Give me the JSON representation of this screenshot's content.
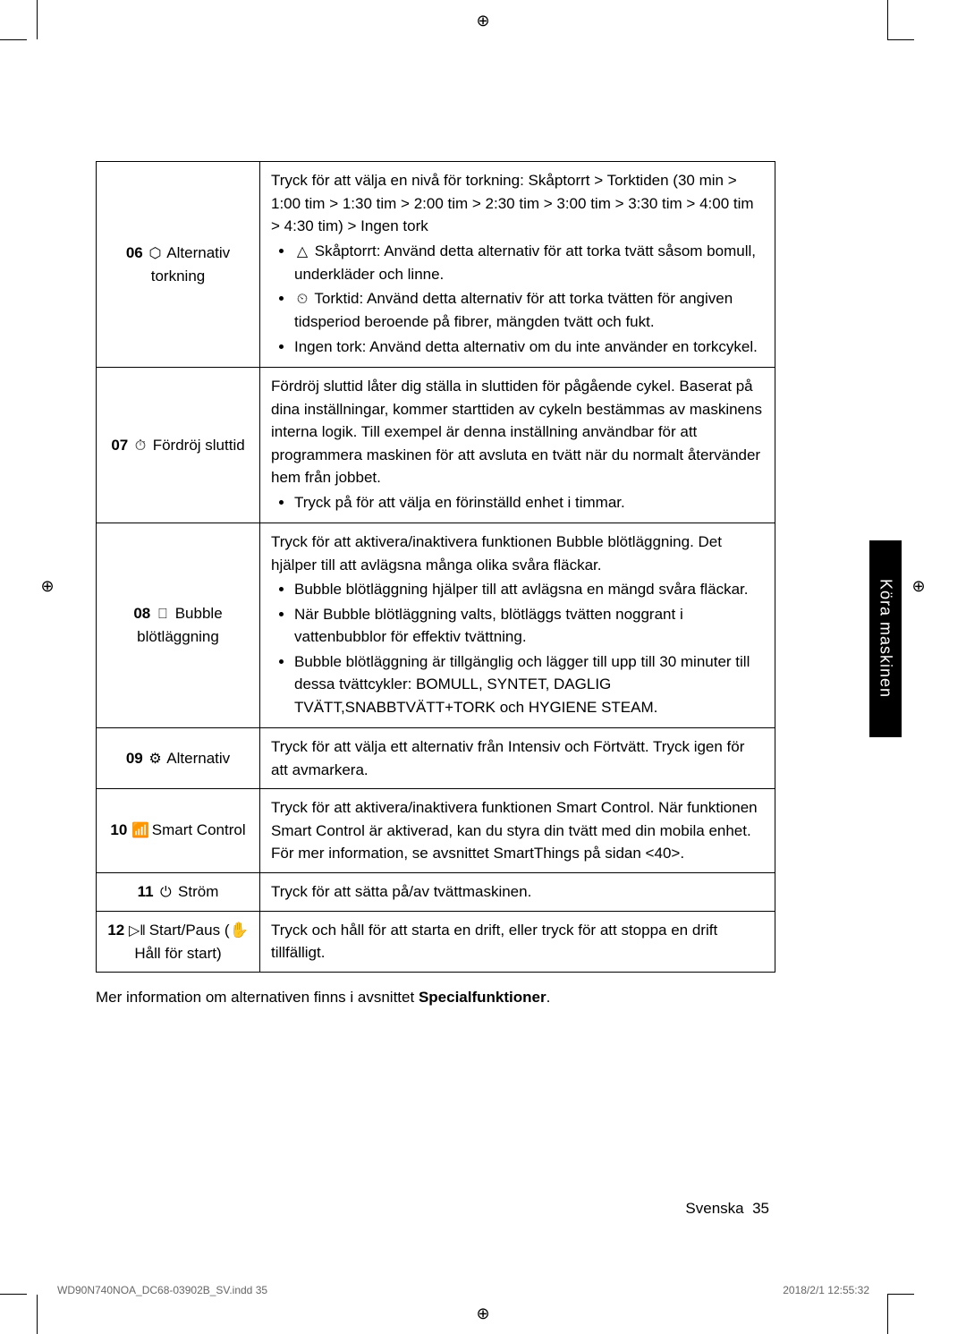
{
  "registration_glyph": "⊕",
  "side_tab": "Köra maskinen",
  "rows": [
    {
      "num": "06",
      "icon": "⬡",
      "label": "Alternativ torkning",
      "desc_intro": "Tryck för att välja en nivå för torkning: Skåptorrt > Torktiden (30 min > 1:00 tim > 1:30 tim > 2:00 tim > 2:30 tim > 3:00 tim > 3:30 tim > 4:00 tim > 4:30 tim) > Ingen tork",
      "bullets": [
        {
          "icon": "△",
          "text": "Skåptorrt: Använd detta alternativ för att torka tvätt såsom bomull, underkläder och linne."
        },
        {
          "icon": "⏲",
          "text": "Torktid: Använd detta alternativ för att torka tvätten för angiven tidsperiod beroende på ﬁbrer, mängden tvätt och fukt."
        },
        {
          "icon": "",
          "text": "Ingen tork: Använd detta alternativ om du inte använder en torkcykel."
        }
      ]
    },
    {
      "num": "07",
      "icon": "⏱",
      "label": "Fördröj sluttid",
      "desc_intro": "Fördröj sluttid låter dig ställa in sluttiden för pågående cykel. Baserat på dina inställningar, kommer starttiden av cykeln bestämmas av maskinens interna logik. Till exempel är denna inställning användbar för att programmera maskinen för att avsluta en tvätt när du normalt återvänder hem från jobbet.",
      "bullets": [
        {
          "icon": "",
          "text": "Tryck på för att välja en förinställd enhet i timmar."
        }
      ]
    },
    {
      "num": "08",
      "icon": "⎕",
      "label": "Bubble blötläggning",
      "desc_intro": "Tryck för att aktivera/inaktivera funktionen Bubble blötläggning. Det hjälper till att avlägsna många olika svåra ﬂäckar.",
      "bullets": [
        {
          "icon": "",
          "text": "Bubble blötläggning hjälper till att avlägsna en mängd svåra ﬂäckar."
        },
        {
          "icon": "",
          "text": "När Bubble blötläggning valts, blötläggs tvätten noggrant i vattenbubblor för effektiv tvättning."
        },
        {
          "icon": "",
          "text": "Bubble blötläggning är tillgänglig och lägger till upp till 30 minuter till dessa tvättcykler: BOMULL, SYNTET, DAGLIG TVÄTT,SNABBTVÄTT+TORK och HYGIENE STEAM."
        }
      ]
    },
    {
      "num": "09",
      "icon": "⚙",
      "label": "Alternativ",
      "desc_intro": "Tryck för att välja ett alternativ från Intensiv och Förtvätt. Tryck igen för att avmarkera.",
      "bullets": []
    },
    {
      "num": "10",
      "icon": "📶",
      "label": "Smart Control",
      "desc_intro": "Tryck för att aktivera/inaktivera funktionen Smart Control. När funktionen Smart Control är aktiverad, kan du styra din tvätt med din mobila enhet. För mer information, se avsnittet SmartThings på sidan <40>.",
      "bullets": []
    },
    {
      "num": "11",
      "icon": "⏻",
      "label": "Ström",
      "desc_intro": "Tryck för att sätta på/av tvättmaskinen.",
      "bullets": []
    },
    {
      "num": "12",
      "icon": "▷‖",
      "label": "Start/Paus (✋ Håll för start)",
      "desc_intro": "Tryck och håll för att starta en drift, eller tryck för att stoppa en drift tillfälligt.",
      "bullets": []
    }
  ],
  "below_table_prefix": "Mer information om alternativen ﬁnns i avsnittet ",
  "below_table_bold": "Specialfunktioner",
  "below_table_suffix": ".",
  "footer_right_lang": "Svenska",
  "footer_right_page": "35",
  "footer_left": "WD90N740NOA_DC68-03902B_SV.indd   35",
  "footer_stamp": "2018/2/1   12:55:32"
}
